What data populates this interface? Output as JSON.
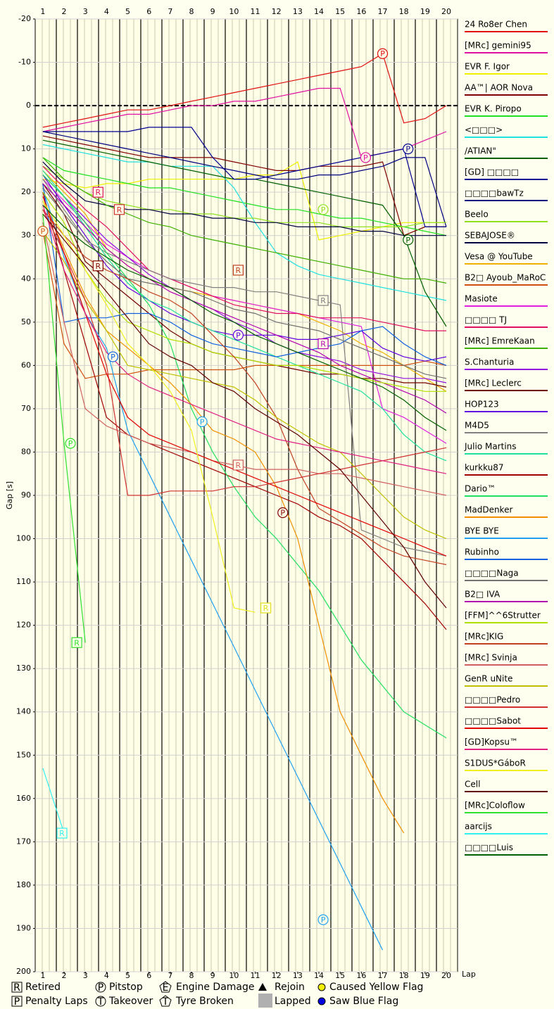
{
  "chart_data": {
    "type": "line",
    "x_label": "Lap",
    "y_label": "Gap [s]",
    "xlim": [
      0.64,
      20.53
    ],
    "xticks": [
      1,
      2,
      3,
      4,
      5,
      6,
      7,
      8,
      9,
      10,
      11,
      12,
      13,
      14,
      15,
      16,
      17,
      18,
      19,
      20
    ],
    "ylim": [
      -20,
      200
    ],
    "yticks": [
      -20,
      -10,
      0,
      10,
      20,
      30,
      40,
      50,
      60,
      70,
      80,
      90,
      100,
      110,
      120,
      130,
      140,
      150,
      160,
      170,
      180,
      190,
      200
    ],
    "y_inverted": true,
    "grid": true,
    "x": [
      1,
      2,
      3,
      4,
      5,
      6,
      7,
      8,
      9,
      10,
      11,
      12,
      13,
      14,
      15,
      16,
      17,
      18,
      19,
      20
    ],
    "series": [
      {
        "name": "24 Ro8er Chen",
        "color": "#e01010",
        "values": [
          5,
          4,
          3,
          2,
          1,
          1,
          0,
          -1,
          -2,
          -3,
          -4,
          -5,
          -6,
          -7,
          -8,
          -9,
          -12,
          4,
          3,
          0
        ]
      },
      {
        "name": "[MRc] gemini95",
        "color": "#e010a0",
        "values": [
          6,
          5,
          4,
          3,
          2,
          2,
          1,
          0,
          0,
          -1,
          -1,
          -2,
          -3,
          -4,
          -4,
          12,
          11,
          10,
          8,
          6
        ]
      },
      {
        "name": "EVR F. Igor",
        "color": "#f0f000",
        "values": [
          17,
          18,
          19,
          18,
          18,
          17,
          17,
          17,
          17,
          17,
          16,
          16,
          13,
          31,
          30,
          29,
          28,
          27,
          27,
          27
        ]
      },
      {
        "name": "AA™| AOR Nova",
        "color": "#800000",
        "values": [
          7,
          8,
          9,
          10,
          11,
          12,
          12,
          12,
          12,
          13,
          14,
          15,
          15,
          14,
          14,
          14,
          13,
          30,
          28,
          28
        ]
      },
      {
        "name": "EVR K. Piropo",
        "color": "#20e020",
        "values": [
          12,
          15,
          16,
          17,
          18,
          19,
          19,
          20,
          21,
          22,
          23,
          24,
          24,
          25,
          26,
          26,
          27,
          28,
          29,
          30
        ]
      },
      {
        "name": "<□□□>",
        "color": "#20e0e0",
        "values": [
          9,
          10,
          11,
          12,
          13,
          13,
          14,
          14,
          14,
          19,
          27,
          34,
          37,
          39,
          40,
          41,
          42,
          43,
          44,
          45
        ]
      },
      {
        "name": "/ATIAN\"",
        "color": "#006000",
        "values": [
          8,
          9,
          10,
          11,
          12,
          13,
          14,
          15,
          16,
          17,
          17,
          18,
          19,
          20,
          21,
          22,
          23,
          30,
          43,
          51
        ]
      },
      {
        "name": "[GD] □□□□",
        "color": "#000090",
        "values": [
          6,
          6,
          6,
          6,
          6,
          5,
          5,
          5,
          12,
          17,
          17,
          16,
          15,
          14,
          13,
          12,
          11,
          10,
          28,
          28
        ]
      },
      {
        "name": "□□□□bawTz",
        "color": "#000080",
        "values": [
          6,
          7,
          8,
          9,
          10,
          11,
          12,
          13,
          14,
          15,
          16,
          17,
          17,
          16,
          16,
          15,
          14,
          12,
          12,
          28
        ]
      },
      {
        "name": "Beelo",
        "color": "#90e020",
        "values": [
          14,
          17,
          20,
          22,
          23,
          24,
          24,
          25,
          25,
          26,
          26,
          27,
          27,
          27,
          28,
          28,
          28,
          28,
          27,
          27
        ]
      },
      {
        "name": "SEBAJOSE®",
        "color": "#000040",
        "values": [
          13,
          18,
          22,
          23,
          24,
          24,
          25,
          25,
          26,
          26,
          27,
          27,
          28,
          28,
          28,
          29,
          29,
          30,
          30,
          30
        ]
      },
      {
        "name": "Vesa @ YouTube",
        "color": "#f0b000",
        "values": [
          15,
          20,
          25,
          33,
          37,
          40,
          42,
          43,
          44,
          45,
          46,
          47,
          48,
          50,
          52,
          55,
          57,
          60,
          63,
          66
        ]
      },
      {
        "name": "B2□ Ayoub_MaRoC",
        "color": "#d05010",
        "values": [
          29,
          55,
          63,
          62,
          62,
          61,
          61,
          61,
          61,
          61,
          60,
          60,
          60,
          60,
          60,
          60,
          60,
          60,
          59,
          60
        ]
      },
      {
        "name": "Masiote",
        "color": "#e020e0",
        "values": [
          17,
          22,
          27,
          32,
          35,
          38,
          40,
          42,
          44,
          45,
          46,
          47,
          48,
          49,
          50,
          51,
          70,
          72,
          75,
          78
        ]
      },
      {
        "name": "□□□□ TJ",
        "color": "#e01060",
        "values": [
          14,
          19,
          24,
          28,
          33,
          38,
          40,
          42,
          44,
          46,
          47,
          48,
          48,
          49,
          49,
          49,
          50,
          51,
          52,
          52
        ]
      },
      {
        "name": "[MRc] EmreKaan",
        "color": "#40b000",
        "values": [
          12,
          17,
          20,
          23,
          25,
          27,
          28,
          30,
          31,
          32,
          33,
          34,
          35,
          36,
          37,
          38,
          39,
          40,
          40,
          41
        ]
      },
      {
        "name": "S.Chanturia",
        "color": "#9010e0",
        "values": [
          16,
          21,
          26,
          31,
          35,
          39,
          42,
          45,
          47,
          50,
          52,
          55,
          57,
          58,
          59,
          61,
          62,
          63,
          63,
          64
        ]
      },
      {
        "name": "[MRc] Leclerc",
        "color": "#700000",
        "values": [
          18,
          25,
          36,
          40,
          44,
          48,
          52,
          55,
          57,
          58,
          59,
          60,
          61,
          62,
          62,
          63,
          63,
          64,
          64,
          65
        ]
      },
      {
        "name": "HOP123",
        "color": "#6000e0",
        "values": [
          16,
          23,
          30,
          37,
          42,
          45,
          48,
          50,
          52,
          53,
          53,
          53,
          54,
          54,
          53,
          52,
          56,
          58,
          59,
          58
        ]
      },
      {
        "name": "M4D5",
        "color": "#808080",
        "values": [
          17,
          24,
          31,
          34,
          36,
          38,
          40,
          41,
          42,
          42,
          43,
          43,
          44,
          45,
          46,
          98,
          100,
          102,
          103,
          104
        ]
      },
      {
        "name": "Julio Martins",
        "color": "#20e0a0",
        "values": [
          15,
          21,
          28,
          35,
          41,
          45,
          47,
          50,
          52,
          54,
          56,
          58,
          60,
          62,
          64,
          66,
          70,
          76,
          80,
          82
        ]
      },
      {
        "name": "kurkku87",
        "color": "#a00000",
        "values": [
          20,
          38,
          55,
          72,
          76,
          78,
          80,
          82,
          84,
          86,
          88,
          90,
          92,
          95,
          97,
          100,
          105,
          110,
          115,
          121
        ]
      },
      {
        "name": "Dario™",
        "color": "#20e060",
        "values": [
          16,
          21,
          27,
          34,
          40,
          46,
          55,
          70,
          80,
          88,
          95,
          100,
          106,
          112,
          120,
          128,
          134,
          140,
          143,
          146
        ]
      },
      {
        "name": "MadDenker",
        "color": "#f09000",
        "values": [
          22,
          33,
          44,
          52,
          56,
          60,
          64,
          69,
          75,
          77,
          80,
          88,
          100,
          120,
          140,
          150,
          160,
          168,
          null,
          null
        ]
      },
      {
        "name": "BYE BYE",
        "color": "#20a0f0",
        "values": [
          19,
          35,
          48,
          56,
          75,
          85,
          95,
          105,
          115,
          125,
          135,
          145,
          155,
          165,
          175,
          185,
          195,
          null,
          null,
          null
        ]
      },
      {
        "name": "Rubinho",
        "color": "#1060e0",
        "values": [
          18,
          50,
          49,
          49,
          48,
          48,
          50,
          53,
          55,
          56,
          57,
          58,
          57,
          56,
          55,
          52,
          51,
          55,
          58,
          60
        ]
      },
      {
        "name": "□□□□Naga",
        "color": "#707070",
        "values": [
          19,
          25,
          31,
          36,
          40,
          41,
          42,
          43,
          45,
          47,
          48,
          50,
          51,
          52,
          54,
          56,
          58,
          60,
          62,
          63
        ]
      },
      {
        "name": "B2□ IVA",
        "color": "#b000b0",
        "values": [
          18,
          23,
          28,
          33,
          37,
          40,
          43,
          45,
          47,
          49,
          51,
          53,
          55,
          57,
          60,
          62,
          64,
          66,
          68,
          71
        ]
      },
      {
        "name": "[FFM]^^6Strutter",
        "color": "#b0e000",
        "values": [
          20,
          27,
          38,
          45,
          50,
          52,
          54,
          55,
          57,
          58,
          59,
          60,
          60,
          61,
          62,
          63,
          64,
          65,
          66,
          66
        ]
      },
      {
        "name": "[MRc]KIG",
        "color": "#c04020",
        "values": [
          24,
          30,
          35,
          38,
          40,
          43,
          45,
          48,
          53,
          58,
          64,
          72,
          84,
          93,
          96,
          99,
          102,
          104,
          105,
          106
        ]
      },
      {
        "name": "[MRc] Svinja",
        "color": "#d06060",
        "values": [
          27,
          50,
          70,
          74,
          76,
          78,
          79,
          80,
          82,
          83,
          84,
          84,
          84,
          85,
          85,
          86,
          87,
          88,
          89,
          90
        ]
      },
      {
        "name": "GenR uNite",
        "color": "#c0c000",
        "values": [
          29,
          36,
          45,
          52,
          60,
          61,
          62,
          63,
          64,
          65,
          68,
          72,
          75,
          78,
          80,
          85,
          90,
          95,
          98,
          100
        ]
      },
      {
        "name": "□□□□Pedro",
        "color": "#d03030",
        "values": [
          24,
          34,
          45,
          60,
          90,
          90,
          89,
          89,
          89,
          88,
          88,
          87,
          86,
          85,
          84,
          83,
          82,
          81,
          80,
          79
        ]
      },
      {
        "name": "□□□□Sabot",
        "color": "#e00000",
        "values": [
          21,
          34,
          48,
          62,
          72,
          76,
          78,
          80,
          82,
          84,
          86,
          88,
          90,
          92,
          94,
          96,
          98,
          100,
          102,
          104
        ]
      },
      {
        "name": "[GD]Kopsu™",
        "color": "#e02080",
        "values": [
          23,
          38,
          48,
          57,
          62,
          65,
          67,
          69,
          71,
          73,
          75,
          77,
          78,
          79,
          80,
          81,
          82,
          83,
          84,
          85
        ]
      },
      {
        "name": "S1DUS*GáboR",
        "color": "#f0f020",
        "values": [
          22,
          30,
          38,
          46,
          55,
          60,
          66,
          75,
          95,
          116,
          117,
          null,
          null,
          null,
          null,
          null,
          null,
          null,
          null,
          null
        ]
      },
      {
        "name": "Cell",
        "color": "#600000",
        "values": [
          25,
          31,
          37,
          43,
          49,
          55,
          58,
          60,
          64,
          66,
          70,
          73,
          76,
          80,
          84,
          90,
          96,
          102,
          110,
          116
        ]
      },
      {
        "name": "[MRc]Coloflow",
        "color": "#30e030",
        "values": [
          25,
          78,
          124,
          null,
          null,
          null,
          null,
          null,
          null,
          null,
          null,
          null,
          null,
          null,
          null,
          null,
          null,
          null,
          null,
          null
        ]
      },
      {
        "name": "aarcijs",
        "color": "#30f0f0",
        "values": [
          153,
          168,
          null,
          null,
          null,
          null,
          null,
          null,
          null,
          null,
          null,
          null,
          null,
          null,
          null,
          null,
          null,
          null,
          null,
          null
        ]
      },
      {
        "name": "□□□□Luis",
        "color": "#006000",
        "values": [
          23,
          28,
          32,
          35,
          38,
          40,
          42,
          45,
          48,
          50,
          53,
          55,
          57,
          59,
          61,
          63,
          65,
          68,
          72,
          75
        ]
      }
    ],
    "markers": [
      {
        "x": 17,
        "y": -12,
        "text": "P",
        "color": "#e01010"
      },
      {
        "x": 16.2,
        "y": 12,
        "text": "P",
        "color": "#e010a0"
      },
      {
        "x": 18.2,
        "y": 10,
        "text": "P",
        "color": "#000090"
      },
      {
        "x": 14.2,
        "y": 24,
        "text": "P",
        "color": "#90e020"
      },
      {
        "x": 18.2,
        "y": 31,
        "text": "P",
        "color": "#006000"
      },
      {
        "x": 1,
        "y": 29,
        "text": "P",
        "color": "#d05010"
      },
      {
        "x": 2.3,
        "y": 78,
        "text": "P",
        "color": "#30e030"
      },
      {
        "x": 14.2,
        "y": 188,
        "text": "P",
        "color": "#20a0f0"
      },
      {
        "x": 12.3,
        "y": 94,
        "text": "P",
        "color": "#800000"
      },
      {
        "x": 10.2,
        "y": 53,
        "text": "P",
        "color": "#6000e0"
      },
      {
        "x": 4.3,
        "y": 58,
        "text": "P",
        "color": "#1060e0"
      },
      {
        "x": 8.5,
        "y": 73,
        "text": "P",
        "color": "#20a0f0"
      },
      {
        "x": 3.6,
        "y": 20,
        "text": "R",
        "color": "#e01060"
      },
      {
        "x": 4.6,
        "y": 24,
        "text": "R",
        "color": "#d03030"
      },
      {
        "x": 3.6,
        "y": 37,
        "text": "R",
        "color": "#800000"
      },
      {
        "x": 10.2,
        "y": 38,
        "text": "R",
        "color": "#c04020"
      },
      {
        "x": 14.2,
        "y": 45,
        "text": "R",
        "color": "#808080"
      },
      {
        "x": 14.2,
        "y": 55,
        "text": "R",
        "color": "#b000b0"
      },
      {
        "x": 2.6,
        "y": 124,
        "text": "R",
        "color": "#30e030"
      },
      {
        "x": 1.9,
        "y": 168,
        "text": "R",
        "color": "#30f0f0"
      },
      {
        "x": 11.5,
        "y": 116,
        "text": "R",
        "color": "#e0e020"
      },
      {
        "x": 10.2,
        "y": 83,
        "text": "R",
        "color": "#d06060"
      }
    ]
  },
  "symbol_legend": [
    {
      "icon": "R",
      "label": "Retired"
    },
    {
      "icon": "P",
      "label": "Pitstop"
    },
    {
      "icon": "E",
      "label": "Engine Damage"
    },
    {
      "label": "Rejoin"
    },
    {
      "label": "Caused Yellow Flag"
    },
    {
      "icon": "P",
      "label": "Penalty Laps"
    },
    {
      "icon": "T",
      "label": "Takeover"
    },
    {
      "icon": "T",
      "label": "Tyre Broken"
    },
    {
      "label": "Lapped"
    },
    {
      "label": "Saw Blue Flag"
    }
  ]
}
